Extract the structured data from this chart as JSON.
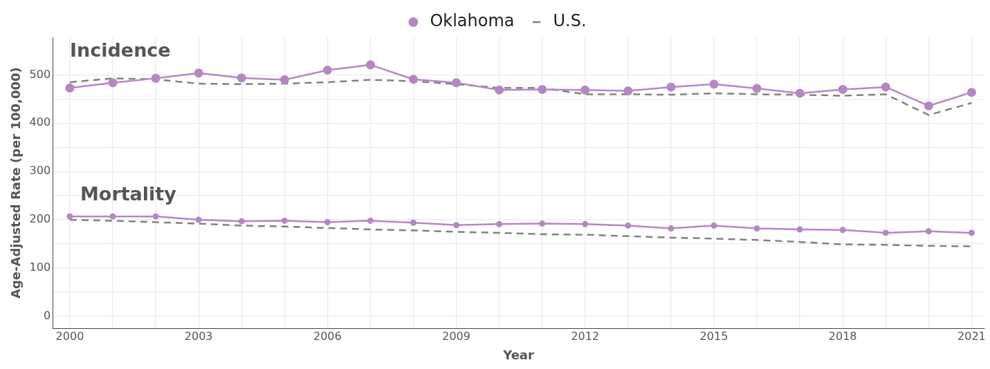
{
  "chart_data": {
    "type": "line",
    "xlabel": "Year",
    "ylabel": "Age-Adjusted Rate (per 100,000)",
    "legend": "top",
    "grid": true,
    "x": [
      2000,
      2001,
      2002,
      2003,
      2004,
      2005,
      2006,
      2007,
      2008,
      2009,
      2010,
      2011,
      2012,
      2013,
      2014,
      2015,
      2016,
      2017,
      2018,
      2019,
      2020,
      2021
    ],
    "xlim": [
      1999.6,
      2021.3
    ],
    "xticks": [
      2000,
      {
        "value": 2001,
        "label": null
      },
      {
        "value": 2002,
        "label": null
      },
      2003,
      {
        "value": 2004,
        "label": null
      },
      {
        "value": 2005,
        "label": null
      },
      2006,
      {
        "value": 2007,
        "label": null
      },
      {
        "value": 2008,
        "label": null
      },
      2009,
      {
        "value": 2010,
        "label": null
      },
      {
        "value": 2011,
        "label": null
      },
      2012,
      {
        "value": 2013,
        "label": null
      },
      {
        "value": 2014,
        "label": null
      },
      2015,
      {
        "value": 2016,
        "label": null
      },
      {
        "value": 2017,
        "label": null
      },
      2018,
      {
        "value": 2019,
        "label": null
      },
      {
        "value": 2020,
        "label": null
      },
      2021
    ],
    "ylim": [
      -25,
      578
    ],
    "yticks": [
      0,
      {
        "value": 50,
        "label": null
      },
      100,
      {
        "value": 150,
        "label": null
      },
      200,
      {
        "value": 250,
        "label": null
      },
      300,
      {
        "value": 350,
        "label": null
      },
      400,
      {
        "value": 450,
        "label": null
      },
      500
    ],
    "series": [
      {
        "name": "Oklahoma",
        "color": "#b587c2",
        "marker": "circle",
        "line_style": "solid",
        "values": [
          473,
          484,
          493,
          504,
          494,
          490,
          510,
          521,
          491,
          484,
          469,
          470,
          469,
          467,
          475,
          481,
          472,
          462,
          470,
          475,
          436,
          464
        ]
      },
      {
        "name": "U.S.",
        "color": "#808080",
        "marker": "none",
        "line_style": "dashed",
        "values": [
          485,
          493,
          491,
          482,
          481,
          482,
          485,
          490,
          487,
          481,
          473,
          473,
          460,
          460,
          459,
          462,
          460,
          459,
          457,
          460,
          417,
          442
        ]
      },
      {
        "color": "#b587c2",
        "marker": "circle",
        "line_style": "solid",
        "values": [
          207,
          207,
          207,
          200,
          197,
          198,
          195,
          198,
          194,
          189,
          191,
          192,
          191,
          188,
          182,
          188,
          182,
          180,
          179,
          173,
          176,
          173
        ]
      },
      {
        "color": "#808080",
        "marker": "none",
        "line_style": "dashed",
        "values": [
          200,
          198,
          195,
          192,
          188,
          186,
          183,
          180,
          178,
          175,
          173,
          170,
          169,
          166,
          163,
          161,
          158,
          154,
          149,
          148,
          146,
          145
        ]
      }
    ],
    "annotations": [
      "Incidence",
      "Mortality"
    ]
  }
}
